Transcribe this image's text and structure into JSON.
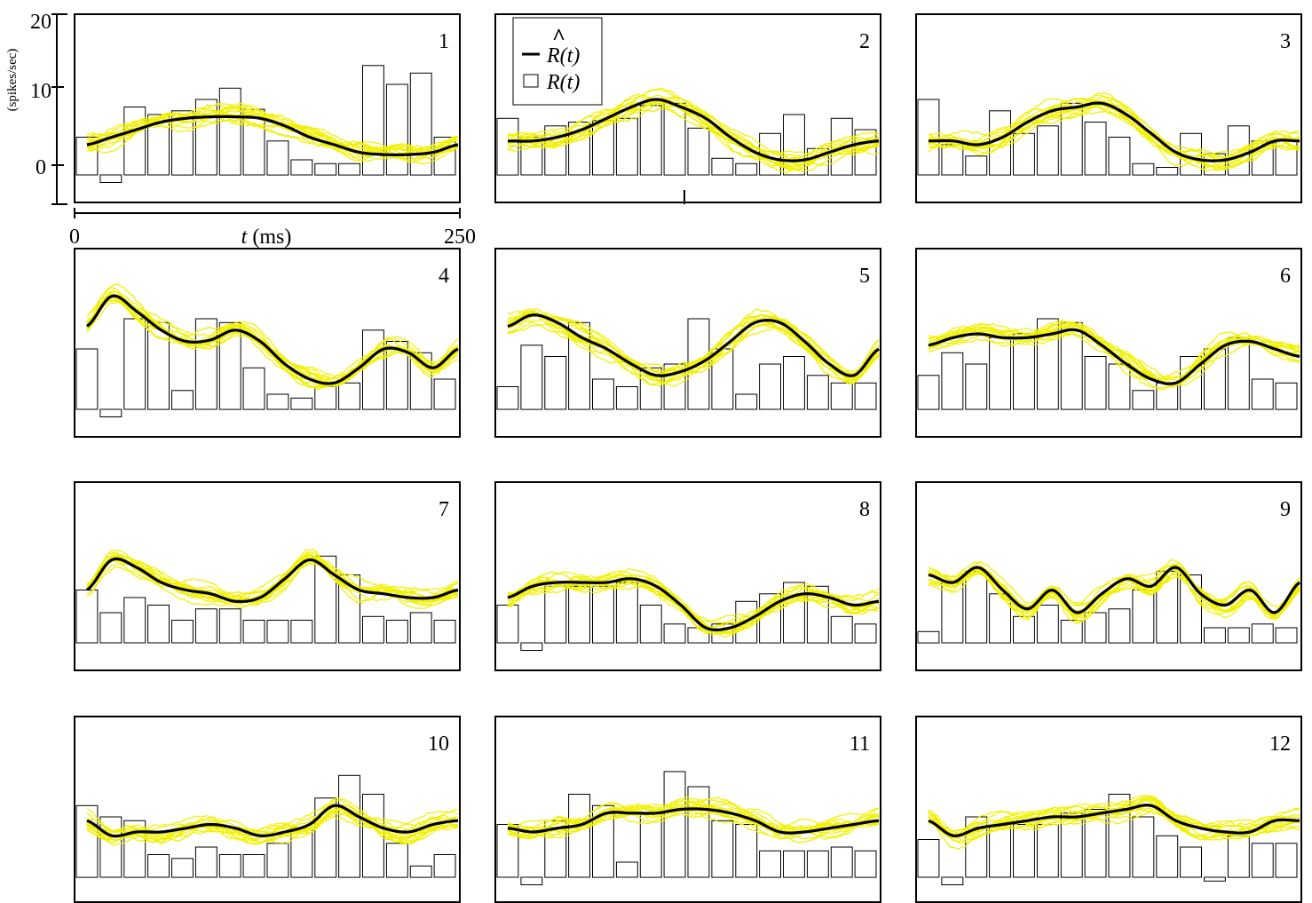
{
  "colors": {
    "frame": "#000000",
    "bars": "#000000",
    "fit": "#000000",
    "samples": "#f0f000",
    "background": "#ffffff"
  },
  "axes": {
    "ylabel": "(spikes/sec)",
    "yticks": [
      "20",
      "10",
      "0"
    ],
    "xlabel_italic": "t",
    "xlabel_unit": " (ms)",
    "xticks": [
      "0",
      "250"
    ]
  },
  "legend": {
    "fit_label": "R(t)",
    "fit_hat": "^",
    "bars_label": "R(t)"
  },
  "chart_data": {
    "type": "bar",
    "description_units": "spikes/sec",
    "x_range": [
      0,
      250
    ],
    "ylim": [
      -5,
      20
    ],
    "bins": 16,
    "panels": [
      {
        "label": "1",
        "bars": [
          5,
          -1,
          9,
          8,
          8.5,
          10,
          11.5,
          8.7,
          4.5,
          2,
          1.5,
          1.5,
          14.5,
          12,
          13.5,
          5
        ],
        "fit": [
          4,
          5,
          6,
          7,
          7.5,
          7.7,
          7.7,
          7.5,
          6.5,
          5,
          4,
          3,
          2.7,
          2.7,
          3,
          4
        ]
      },
      {
        "label": "2",
        "bars": [
          7.5,
          5,
          6.5,
          7,
          7.2,
          7.5,
          9.2,
          9.5,
          6.2,
          2.2,
          1.5,
          5.5,
          8,
          3.5,
          7.5,
          6
        ],
        "fit": [
          4.5,
          4.5,
          5,
          6,
          7.5,
          9,
          10,
          9,
          7.5,
          5,
          3,
          2,
          2,
          3,
          4,
          4.5
        ]
      },
      {
        "label": "3",
        "bars": [
          10,
          4,
          2.5,
          8.5,
          5.5,
          6.5,
          9.5,
          7,
          5,
          1.5,
          1,
          5.5,
          2.8,
          6.5,
          4.5,
          4.5
        ],
        "fit": [
          4.5,
          4.5,
          4,
          5,
          7,
          8.5,
          9,
          9.5,
          8,
          5.5,
          3,
          2,
          2,
          3,
          4.5,
          4.5
        ]
      },
      {
        "label": "4",
        "bars": [
          8,
          -1,
          12,
          11.5,
          2.5,
          12,
          11.5,
          5.5,
          2,
          1.5,
          3,
          3.5,
          10.5,
          9,
          7.5,
          4
        ],
        "fit": [
          11,
          15,
          13,
          10.5,
          9,
          9.2,
          10.5,
          9,
          6,
          4,
          3.5,
          5.5,
          8,
          7.5,
          5.5,
          8
        ]
      },
      {
        "label": "5",
        "bars": [
          3,
          8.5,
          7,
          11.5,
          4,
          3,
          5.5,
          6,
          12,
          8,
          2,
          6,
          7,
          4.5,
          3.5,
          3.5
        ],
        "fit": [
          11,
          12.5,
          11.5,
          9.5,
          8,
          6,
          4.5,
          5,
          6.5,
          9,
          11.5,
          11.5,
          9,
          6,
          4.5,
          8
        ]
      },
      {
        "label": "6",
        "bars": [
          4.5,
          7.5,
          6,
          9.5,
          10,
          12,
          11.5,
          7,
          6,
          2.5,
          3.5,
          7,
          8,
          9.5,
          4,
          3.5
        ],
        "fit": [
          8.5,
          9.5,
          10,
          9.5,
          9.5,
          10,
          10.5,
          8.5,
          6,
          4,
          3.5,
          6,
          8.5,
          9,
          8,
          7
        ]
      },
      {
        "label": "7",
        "bars": [
          7,
          4,
          6,
          5,
          3,
          4.5,
          4.5,
          3,
          3,
          3,
          11.5,
          9,
          3.5,
          3,
          4,
          3
        ],
        "fit": [
          7,
          11,
          10,
          8,
          7,
          6.5,
          5.5,
          6,
          8.5,
          11,
          9,
          7,
          6.5,
          6,
          6,
          7
        ]
      },
      {
        "label": "8",
        "bars": [
          5,
          -1,
          7.5,
          7.5,
          7.5,
          8,
          5,
          2.5,
          2,
          2.5,
          5.5,
          6.5,
          8,
          7.5,
          3.5,
          2.5
        ],
        "fit": [
          6,
          7.5,
          8,
          8,
          8,
          8.5,
          7.5,
          5,
          2,
          2,
          3.5,
          5.5,
          6.5,
          6,
          5,
          5.5
        ]
      },
      {
        "label": "9",
        "bars": [
          1.5,
          8,
          9.5,
          6.5,
          3.5,
          5,
          3,
          4,
          4.5,
          7,
          9.5,
          9,
          2,
          2,
          2.5,
          2
        ],
        "fit": [
          9,
          8,
          10,
          7,
          4.5,
          7,
          4,
          6.5,
          8.5,
          7.5,
          10,
          6.5,
          5,
          7,
          4,
          8
        ]
      },
      {
        "label": "10",
        "bars": [
          9.5,
          8,
          7.5,
          3,
          2.5,
          4,
          3,
          3,
          4.5,
          6.5,
          10.5,
          13.5,
          11,
          4.5,
          1.5,
          3
        ],
        "fit": [
          7.5,
          5.5,
          6,
          6,
          6.5,
          7,
          6.5,
          5.5,
          6,
          7,
          9.5,
          8,
          6.5,
          6,
          7,
          7.5
        ]
      },
      {
        "label": "11",
        "bars": [
          7,
          -1,
          7.5,
          11,
          9.5,
          2,
          8.5,
          14,
          12,
          7.5,
          7,
          3.5,
          3.5,
          3.5,
          4,
          3.5
        ],
        "fit": [
          6.5,
          6,
          6.5,
          7,
          8.5,
          8.5,
          8.5,
          9,
          9,
          8.5,
          7.5,
          6,
          6,
          6.5,
          7,
          7.5
        ]
      },
      {
        "label": "12",
        "bars": [
          5,
          -1,
          8,
          7,
          7,
          7,
          8.5,
          9,
          11,
          8,
          5.5,
          4,
          -0.5,
          5.5,
          4.5,
          4.5
        ],
        "fit": [
          7.5,
          5.5,
          6.5,
          7,
          7.5,
          8,
          8,
          8.5,
          9,
          9.5,
          7.5,
          6.5,
          6,
          6,
          7.5,
          7.5
        ]
      }
    ]
  }
}
